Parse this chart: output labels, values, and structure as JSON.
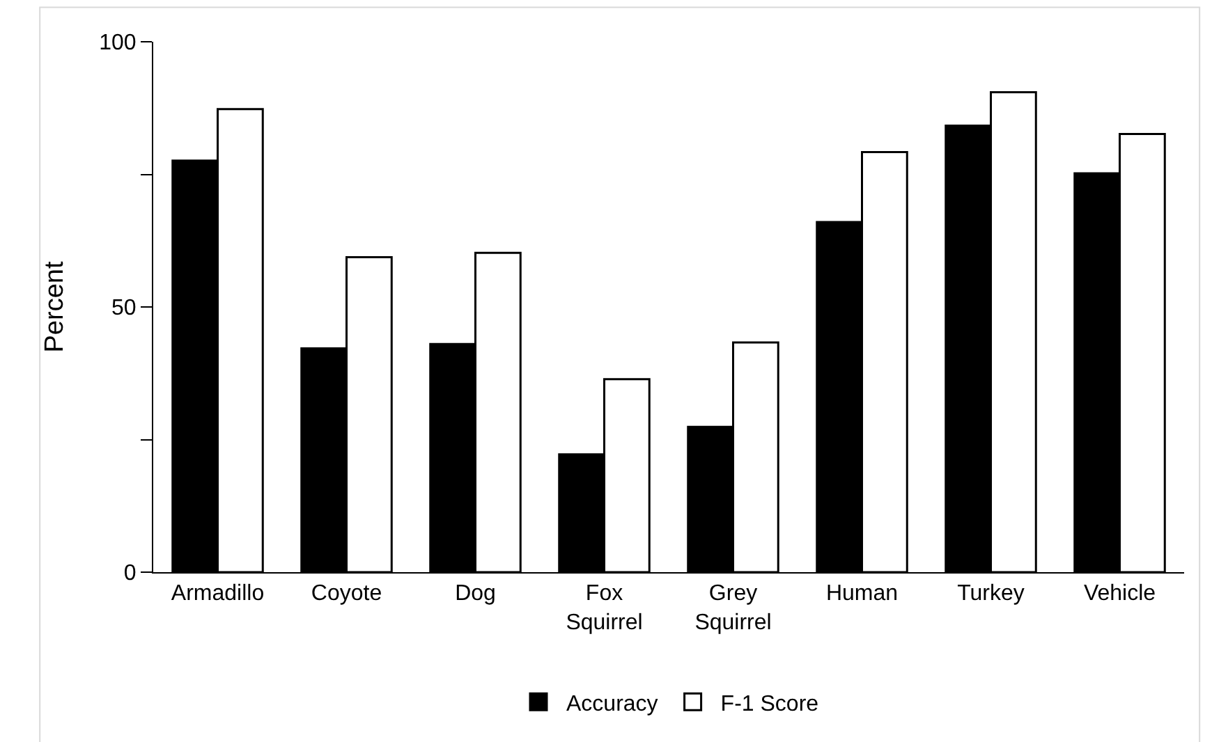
{
  "chart_data": {
    "type": "bar",
    "ylabel": "Percent",
    "categories": [
      "Armadillo",
      "Coyote",
      "Dog",
      "Fox Squirrel",
      "Grey Squirrel",
      "Human",
      "Turkey",
      "Vehicle"
    ],
    "series": [
      {
        "name": "Accuracy",
        "color": "#000000",
        "values": [
          77.6,
          42.2,
          43.0,
          22.2,
          27.4,
          66.0,
          84.2,
          75.2
        ]
      },
      {
        "name": "F-1 Score",
        "color": "#ffffff",
        "values": [
          87.3,
          59.4,
          60.2,
          36.4,
          43.3,
          79.2,
          90.5,
          82.6
        ]
      }
    ],
    "ylim": [
      0,
      100
    ],
    "yticks": [
      0,
      {
        "value": 25,
        "label": null
      },
      50,
      {
        "value": 75,
        "label": null
      },
      100
    ],
    "grid": false,
    "legend": "bottom"
  }
}
